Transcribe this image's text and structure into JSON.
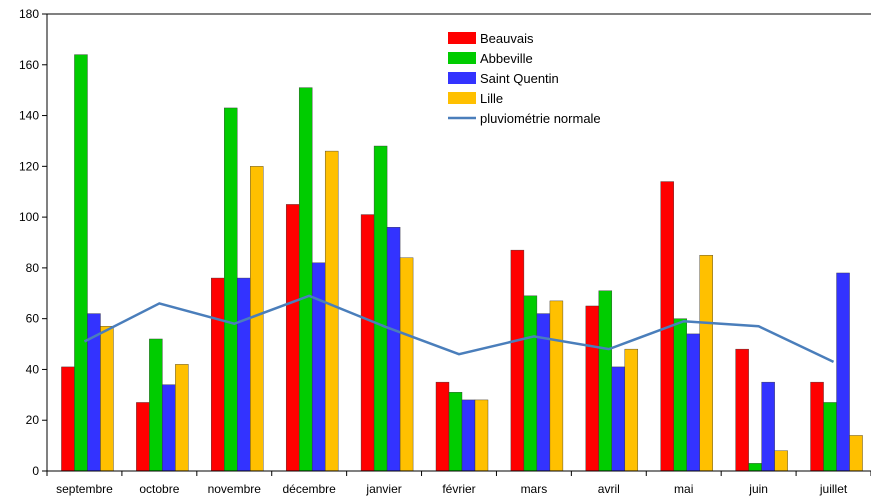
{
  "chart_data": {
    "type": "bar",
    "title": "",
    "xlabel": "",
    "ylabel": "",
    "ylim": [
      0,
      180
    ],
    "yticks": [
      0,
      20,
      40,
      60,
      80,
      100,
      120,
      140,
      160,
      180
    ],
    "grid": false,
    "legend_position": "top-right",
    "categories": [
      "septembre",
      "octobre",
      "novembre",
      "décembre",
      "janvier",
      "février",
      "mars",
      "avril",
      "mai",
      "juin",
      "juillet"
    ],
    "series": [
      {
        "name": "Beauvais",
        "color": "#ff0000",
        "values": [
          41,
          27,
          76,
          105,
          101,
          35,
          87,
          65,
          114,
          48,
          35
        ]
      },
      {
        "name": "Abbeville",
        "color": "#00cc00",
        "values": [
          164,
          52,
          143,
          151,
          128,
          31,
          69,
          71,
          60,
          3,
          27
        ]
      },
      {
        "name": "Saint Quentin",
        "color": "#3333ff",
        "values": [
          62,
          34,
          76,
          82,
          96,
          28,
          62,
          41,
          54,
          35,
          78
        ]
      },
      {
        "name": "Lille",
        "color": "#ffc000",
        "values": [
          57,
          42,
          120,
          126,
          84,
          28,
          67,
          48,
          85,
          8,
          14
        ]
      }
    ],
    "line_series": {
      "name": "pluviométrie normale",
      "color": "#4a7ebb",
      "values": [
        51,
        66,
        58,
        69,
        57,
        46,
        53,
        48,
        59,
        57,
        43
      ]
    }
  }
}
